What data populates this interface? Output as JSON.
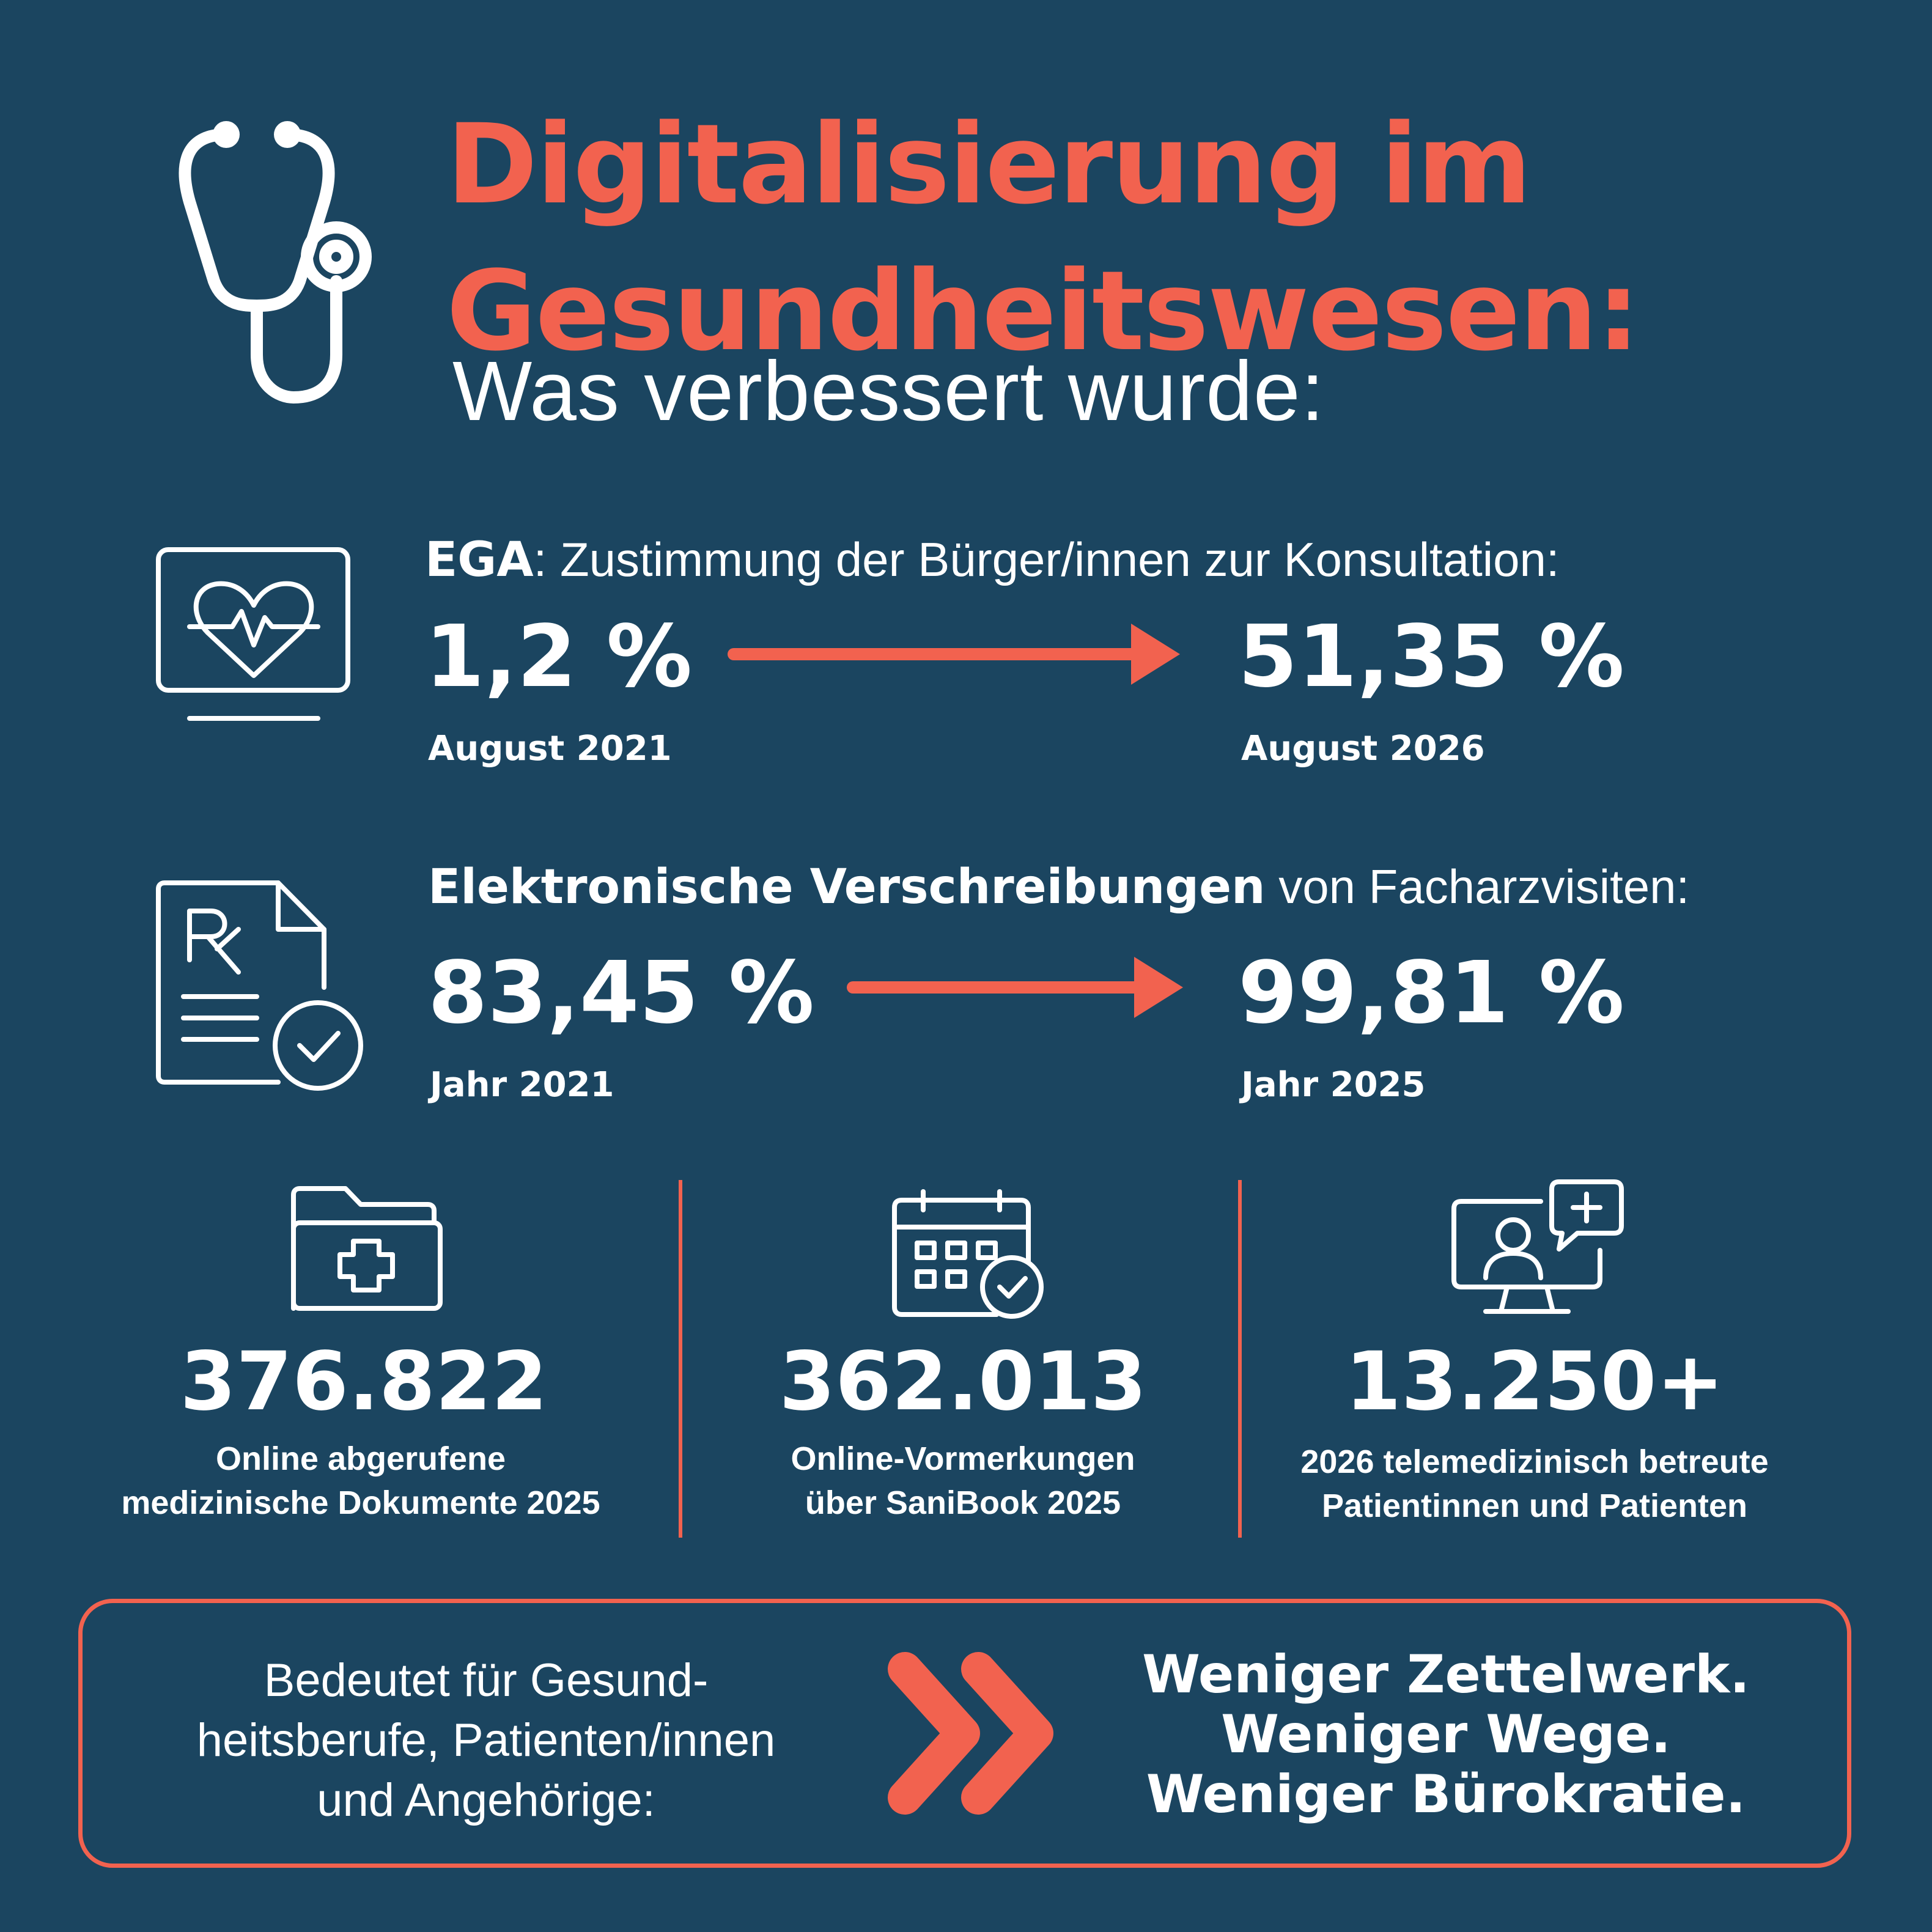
{
  "colors": {
    "background": "#1b4560",
    "accent": "#f2624f",
    "text": "#ffffff"
  },
  "header": {
    "icon": "stethoscope-icon",
    "title_line1": "Digitalisierung im",
    "title_line2": "Gesundheitswesen:",
    "subtitle": "Was verbessert wurde:"
  },
  "ega": {
    "icon": "monitor-heart-icon",
    "label_bold": "EGA",
    "label_rest": ": Zustimmung der Bürger/innen zur Konsultation:",
    "from_value": "1,2 %",
    "from_period": "August 2021",
    "to_value": "51,35 %",
    "to_period": "August 2026"
  },
  "prescriptions": {
    "icon": "prescription-document-check-icon",
    "label_bold": "Elektronische Verschreibungen",
    "label_rest": " von Facharzvisiten:",
    "from_value": "83,45 %",
    "from_period": "Jahr 2021",
    "to_value": "99,81 %",
    "to_period": "Jahr 2025"
  },
  "stats": [
    {
      "icon": "medical-folder-icon",
      "value": "376.822",
      "desc_line1": "Online abgerufene",
      "desc_line2": "medizinische Dokumente 2025"
    },
    {
      "icon": "calendar-check-icon",
      "value": "362.013",
      "desc_line1": "Online-Vormerkungen",
      "desc_line2": "über SaniBook 2025"
    },
    {
      "icon": "telemedicine-monitor-icon",
      "value": "13.250+",
      "desc_line1": "2026 telemedizinisch betreute",
      "desc_line2": "Patientinnen und Patienten"
    }
  ],
  "summary": {
    "left_line1": "Bedeutet für Gesund-",
    "left_line2": "heitsberufe, Patienten/innen",
    "left_line3": "und Angehörige:",
    "icon": "double-chevron-right-icon",
    "right_line1": "Weniger Zettelwerk.",
    "right_line2": "Weniger Wege.",
    "right_line3": "Weniger Bürokratie."
  }
}
